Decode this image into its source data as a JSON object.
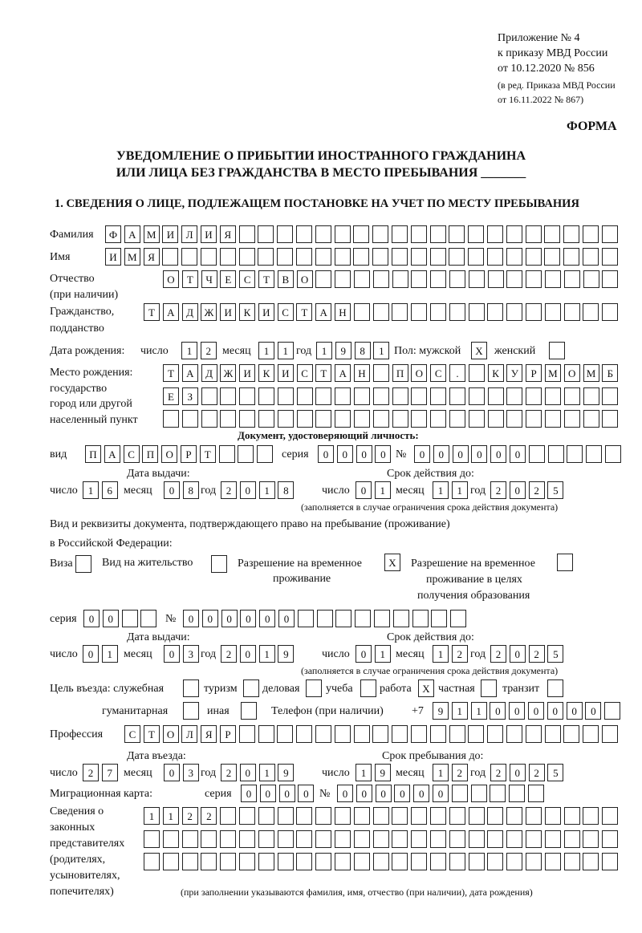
{
  "header": {
    "appendix": [
      "Приложение № 4",
      "к приказу МВД России",
      "от 10.12.2020 № 856"
    ],
    "revision": [
      "(в ред. Приказа МВД России",
      "от 16.11.2022 № 867)"
    ],
    "form_label": "ФОРМА",
    "title_line1": "УВЕДОМЛЕНИЕ О ПРИБЫТИИ ИНОСТРАННОГО ГРАЖДАНИНА",
    "title_line2": "ИЛИ ЛИЦА БЕЗ ГРАЖДАНСТВА В МЕСТО ПРЕБЫВАНИЯ _______",
    "section_title": "1. СВЕДЕНИЯ О ЛИЦЕ, ПОДЛЕЖАЩЕМ ПОСТАНОВКЕ НА УЧЕТ ПО МЕСТУ ПРЕБЫВАНИЯ"
  },
  "labels": {
    "surname": "Фамилия",
    "name": "Имя",
    "patronymic": "Отчество",
    "patronymic_note": "(при наличии)",
    "citizenship": "Гражданство,",
    "citizenship2": "подданство",
    "birth_date": "Дата рождения:",
    "day": "число",
    "month": "месяц",
    "year": "год",
    "sex": "Пол: мужской",
    "female": "женский",
    "birthplace": [
      "Место рождения:",
      "государство",
      "город или другой",
      "населенный пункт"
    ],
    "id_doc": "Документ, удостоверяющий личность:",
    "kind": "вид",
    "series": "серия",
    "number": "№",
    "issue_date": "Дата выдачи:",
    "valid_until": "Срок действия до:",
    "validity_note": "(заполняется в случае ограничения срока действия документа)",
    "stay_doc_1": "Вид и реквизиты документа, подтверждающего право на пребывание (проживание)",
    "stay_doc_2": "в Российской Федерации:",
    "visa": "Виза",
    "residence_permit": "Вид на жительство",
    "temp_permit_1": "Разрешение на временное",
    "temp_permit_2": "проживание",
    "edu_permit_1": "Разрешение на временное",
    "edu_permit_2": "проживание в целях",
    "edu_permit_3": "получения образования",
    "purpose": "Цель въезда: служебная",
    "tourism": "туризм",
    "business": "деловая",
    "study": "учеба",
    "work": "работа",
    "private": "частная",
    "transit": "транзит",
    "humanitarian": "гуманитарная",
    "other": "иная",
    "phone": "Телефон (при наличии)",
    "phone_prefix": "+7",
    "profession": "Профессия",
    "entry_date": "Дата въезда:",
    "stay_until": "Срок пребывания до:",
    "migration_card": "Миграционная карта:",
    "representatives": [
      "Сведения о",
      "законных",
      "представителях",
      "(родителях,",
      "усыновителях,",
      "попечителях)"
    ],
    "representatives_note": "(при заполнении указываются фамилия, имя, отчество (при наличии), дата рождения)"
  },
  "person": {
    "surname": "ФАМИЛИЯ",
    "name": "ИМЯ",
    "patronymic": "ОТЧЕСТВО",
    "citizenship": "ТАДЖИКИСТАН",
    "birth_day": "12",
    "birth_month": "11",
    "birth_year": "1981",
    "sex_male": "X",
    "sex_female": "",
    "birthplace_1": "ТАДЖИКИСТАН ПОС. КУРМОМБ",
    "birthplace_2": "ЕЗ",
    "birthplace_3": "",
    "id_kind": "ПАСПОРТ",
    "id_series": "0000",
    "id_number": "000000",
    "id_issue_day": "16",
    "id_issue_month": "08",
    "id_issue_year": "2018",
    "id_valid_day": "01",
    "id_valid_month": "11",
    "id_valid_year": "2025",
    "visa": "",
    "residence_permit": "",
    "temp_permit": "X",
    "edu_permit": "",
    "stay_series": "00",
    "stay_number": "000000",
    "stay_issue_day": "01",
    "stay_issue_month": "03",
    "stay_issue_year": "2019",
    "stay_valid_day": "01",
    "stay_valid_month": "12",
    "stay_valid_year": "2025",
    "purpose_official": "",
    "purpose_tourism": "",
    "purpose_business": "",
    "purpose_study": "",
    "purpose_work": "X",
    "purpose_private": "",
    "purpose_transit": "",
    "purpose_humanitarian": "",
    "purpose_other": "",
    "phone": "911000000",
    "profession": "СТОЛЯР",
    "entry_day": "27",
    "entry_month": "03",
    "entry_year": "2019",
    "stay_until_day": "19",
    "stay_until_month": "12",
    "stay_until_year": "2025",
    "mc_series": "0000",
    "mc_number": "000000",
    "representatives_1": "1122",
    "representatives_2": "",
    "representatives_3": ""
  }
}
